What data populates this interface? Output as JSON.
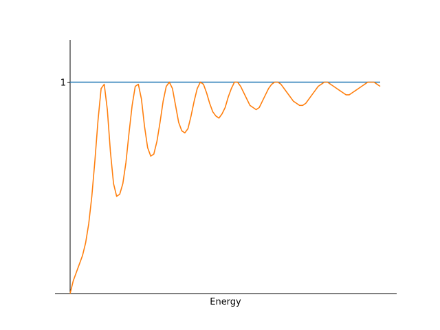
{
  "chart_data": {
    "type": "line",
    "title": "",
    "xlabel": "Energy",
    "ylabel": "",
    "xlim": [
      0,
      100
    ],
    "ylim": [
      0,
      1.2
    ],
    "y_ticks": [
      {
        "value": 1,
        "label": "1"
      }
    ],
    "x_ticks": [],
    "grid": false,
    "legend": "none",
    "series": [
      {
        "color": "#1f77b4",
        "x": [
          0,
          100
        ],
        "y": [
          1,
          1
        ]
      },
      {
        "color": "#ff7f0e",
        "x": [
          0,
          1,
          2,
          3,
          4,
          5,
          6,
          7,
          8,
          9,
          10,
          11,
          12,
          13,
          14,
          15,
          16,
          17,
          18,
          19,
          20,
          21,
          22,
          23,
          24,
          25,
          26,
          27,
          28,
          29,
          30,
          31,
          32,
          33,
          34,
          35,
          36,
          37,
          38,
          39,
          40,
          41,
          42,
          43,
          44,
          45,
          46,
          47,
          48,
          49,
          50,
          51,
          52,
          53,
          54,
          55,
          56,
          57,
          58,
          59,
          60,
          61,
          62,
          63,
          64,
          65,
          66,
          67,
          68,
          69,
          70,
          71,
          72,
          73,
          74,
          75,
          76,
          77,
          78,
          79,
          80,
          81,
          82,
          83,
          84,
          85,
          86,
          87,
          88,
          89,
          90,
          91,
          92,
          93,
          94,
          95,
          96,
          97,
          98,
          99,
          100
        ],
        "y": [
          0.0,
          0.06,
          0.1,
          0.14,
          0.18,
          0.24,
          0.33,
          0.46,
          0.63,
          0.82,
          0.97,
          0.99,
          0.87,
          0.67,
          0.52,
          0.46,
          0.47,
          0.52,
          0.62,
          0.76,
          0.89,
          0.98,
          0.99,
          0.92,
          0.79,
          0.69,
          0.65,
          0.66,
          0.72,
          0.81,
          0.91,
          0.98,
          1.0,
          0.97,
          0.89,
          0.81,
          0.77,
          0.76,
          0.78,
          0.84,
          0.91,
          0.97,
          1.0,
          0.99,
          0.95,
          0.9,
          0.86,
          0.84,
          0.83,
          0.85,
          0.88,
          0.93,
          0.97,
          1.0,
          1.0,
          0.98,
          0.95,
          0.92,
          0.89,
          0.88,
          0.87,
          0.88,
          0.91,
          0.94,
          0.97,
          0.99,
          1.0,
          1.0,
          0.99,
          0.97,
          0.95,
          0.93,
          0.91,
          0.9,
          0.89,
          0.89,
          0.9,
          0.92,
          0.94,
          0.96,
          0.98,
          0.99,
          1.0,
          1.0,
          0.99,
          0.98,
          0.97,
          0.96,
          0.95,
          0.94,
          0.94,
          0.95,
          0.96,
          0.97,
          0.98,
          0.99,
          1.0,
          1.0,
          1.0,
          0.99,
          0.98
        ]
      }
    ]
  }
}
